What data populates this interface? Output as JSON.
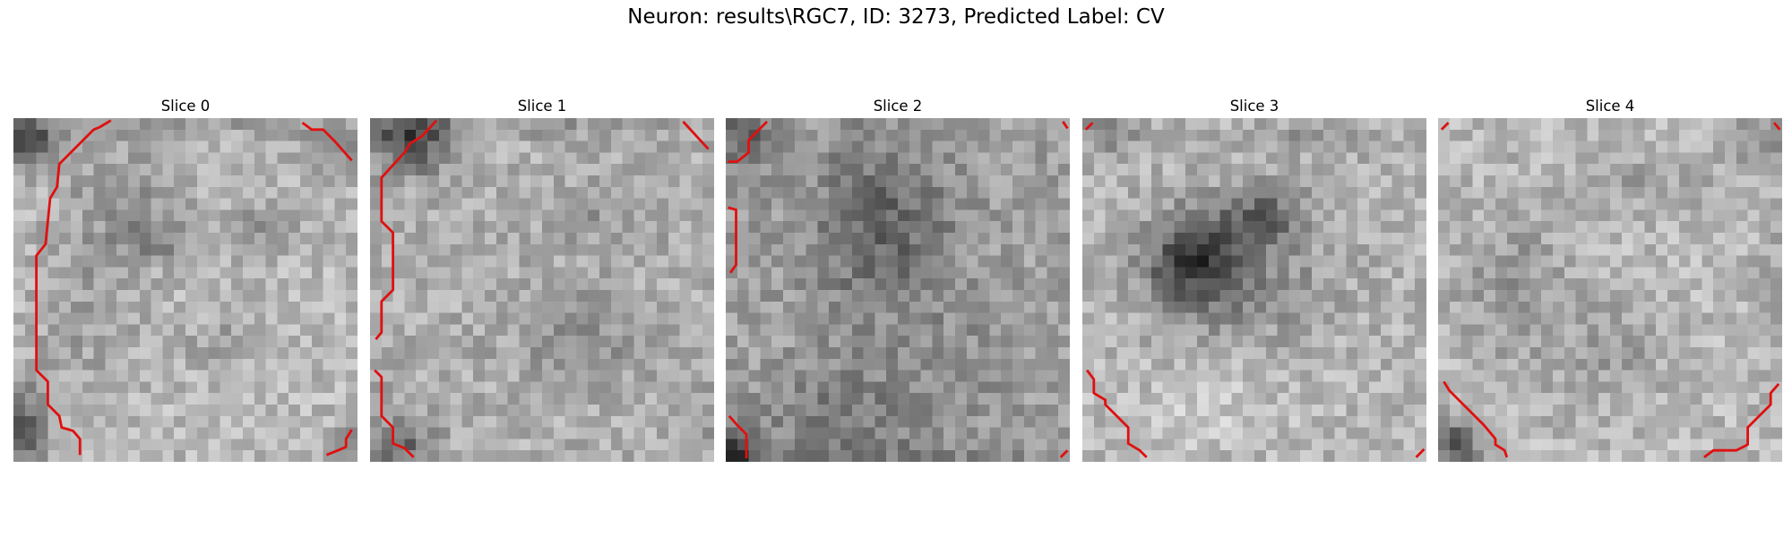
{
  "figure": {
    "title": "Neuron: results\\RGC7, ID: 3273, Predicted Label: CV"
  },
  "image_grid": {
    "cols": 30,
    "rows": 30
  },
  "contour_color": "#e01010",
  "slices": [
    {
      "title": "Slice 0"
    },
    {
      "title": "Slice 1"
    },
    {
      "title": "Slice 2"
    },
    {
      "title": "Slice 3"
    },
    {
      "title": "Slice 4"
    }
  ]
}
